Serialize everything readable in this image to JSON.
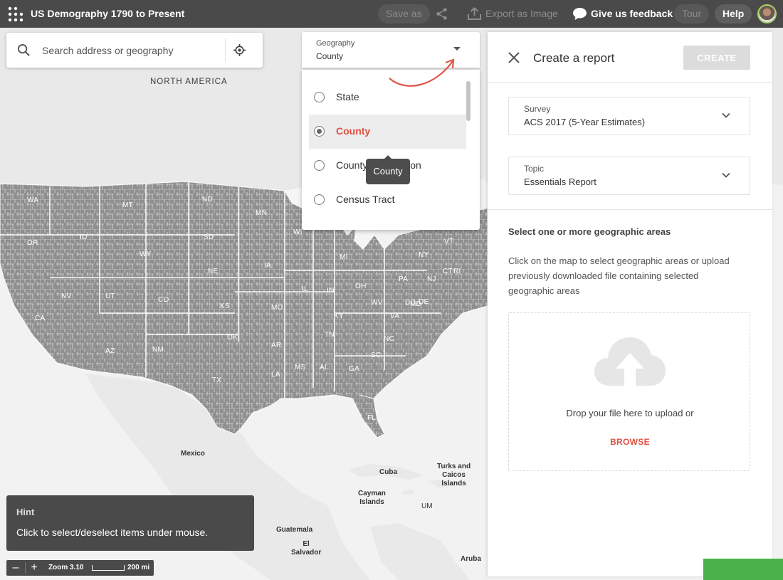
{
  "app": {
    "title": "US Demography 1790 to Present"
  },
  "toolbar": {
    "save_as": "Save as",
    "export_image": "Export as Image",
    "feedback": "Give us feedback",
    "tour": "Tour",
    "help": "Help",
    "icons": [
      "apps-grid-icon",
      "share-icon",
      "export-upload-icon",
      "speech-bubble-icon"
    ]
  },
  "search": {
    "placeholder": "Search address or geography"
  },
  "geography": {
    "label": "Geography",
    "value": "County",
    "options": [
      {
        "label": "State",
        "selected": false
      },
      {
        "label": "County",
        "selected": true
      },
      {
        "label": "County Subdivision",
        "selected": false
      },
      {
        "label": "Census Tract",
        "selected": false
      }
    ],
    "tooltip": "County"
  },
  "report": {
    "title": "Create a report",
    "create_label": "CREATE",
    "survey": {
      "label": "Survey",
      "value": "ACS 2017 (5-Year Estimates)"
    },
    "topic": {
      "label": "Topic",
      "value": "Essentials Report"
    },
    "heading": "Select one or more geographic areas",
    "description": "Click on the map to select geographic areas or upload previously downloaded file containing selected geographic areas",
    "drop_text": "Drop your file here to upload or",
    "browse_label": "BROWSE"
  },
  "map": {
    "continent_label": "NORTH AMERICA",
    "states": [
      "WA",
      "MT",
      "ND",
      "MN",
      "OR",
      "ID",
      "SD",
      "WY",
      "WI",
      "MI",
      "NE",
      "IA",
      "NV",
      "UT",
      "CO",
      "KS",
      "IL",
      "IN",
      "OH",
      "PA",
      "NY",
      "VT",
      "NJ",
      "CT",
      "RI",
      "MO",
      "KY",
      "WV",
      "VA",
      "MD",
      "DE",
      "DC",
      "CA",
      "AZ",
      "NM",
      "OK",
      "AR",
      "TN",
      "NC",
      "SC",
      "MS",
      "AL",
      "GA",
      "LA",
      "TX",
      "FL"
    ],
    "places": [
      "Mexico",
      "Cuba",
      "Turks and\nCaicos\nIslands",
      "Cayman\nIslands",
      "UM",
      "Guatemala",
      "El\nSalvador",
      "Aruba"
    ],
    "colors": {
      "counties": "#8f8f8f",
      "land": "#e9e9e9",
      "water": "#f5f5f5"
    }
  },
  "hint": {
    "title": "Hint",
    "text": "Click to select/deselect items under mouse."
  },
  "zoom": {
    "level": "Zoom 3.10",
    "scale": "200 mi",
    "minus": "–",
    "plus": "+"
  },
  "colors": {
    "accent": "#e0503f",
    "topbar": "#4a4a4a",
    "success": "#4bb24a"
  }
}
